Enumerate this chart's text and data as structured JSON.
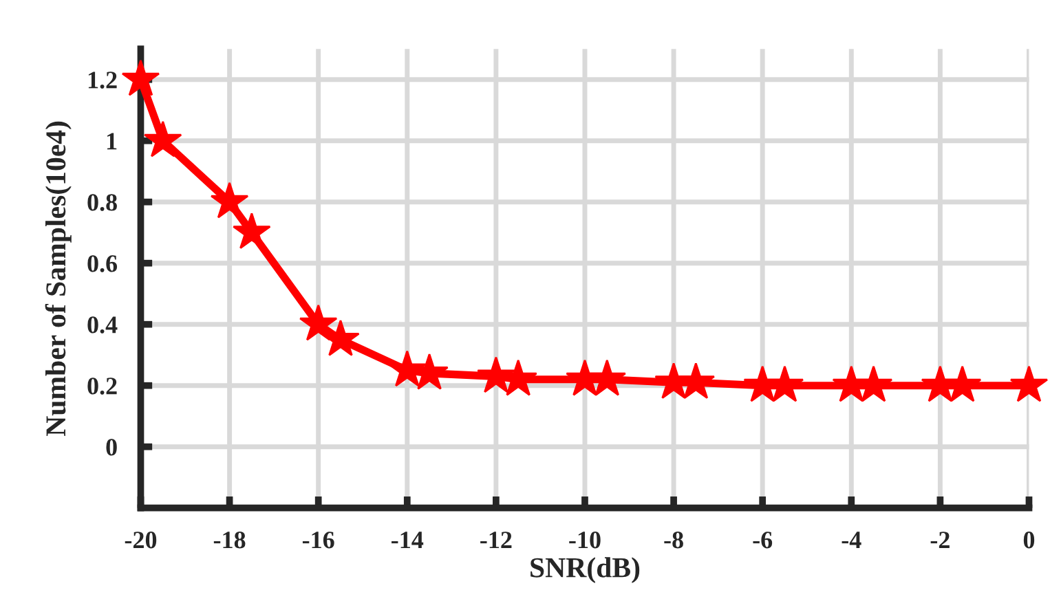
{
  "chart_data": {
    "type": "line",
    "xlabel": "SNR(dB)",
    "ylabel": "Number of Samples(10e4)",
    "x": [
      -20,
      -19.5,
      -18,
      -17.5,
      -16,
      -15.5,
      -14,
      -13.5,
      -12,
      -11.5,
      -10,
      -9.5,
      -8,
      -7.5,
      -6,
      -5.5,
      -4,
      -3.5,
      -2,
      -1.5,
      0
    ],
    "series": [
      {
        "color": "#ff0000",
        "values": [
          1.2,
          1.0,
          0.8,
          0.7,
          0.4,
          0.35,
          0.25,
          0.24,
          0.23,
          0.22,
          0.22,
          0.22,
          0.21,
          0.21,
          0.2,
          0.2,
          0.2,
          0.2,
          0.2,
          0.2,
          0.2
        ]
      }
    ],
    "xlim": [
      -20,
      0
    ],
    "xticks": [
      -20,
      -18,
      -16,
      -14,
      -12,
      -10,
      -8,
      -6,
      -4,
      -2,
      0
    ],
    "ylim": [
      -0.2,
      1.3
    ],
    "yticks": [
      0,
      0.2,
      0.4,
      0.6,
      0.8,
      {
        "value": 1,
        "label": "1"
      },
      1.2
    ],
    "grid": true,
    "marker": "star",
    "line_style": "solid"
  }
}
